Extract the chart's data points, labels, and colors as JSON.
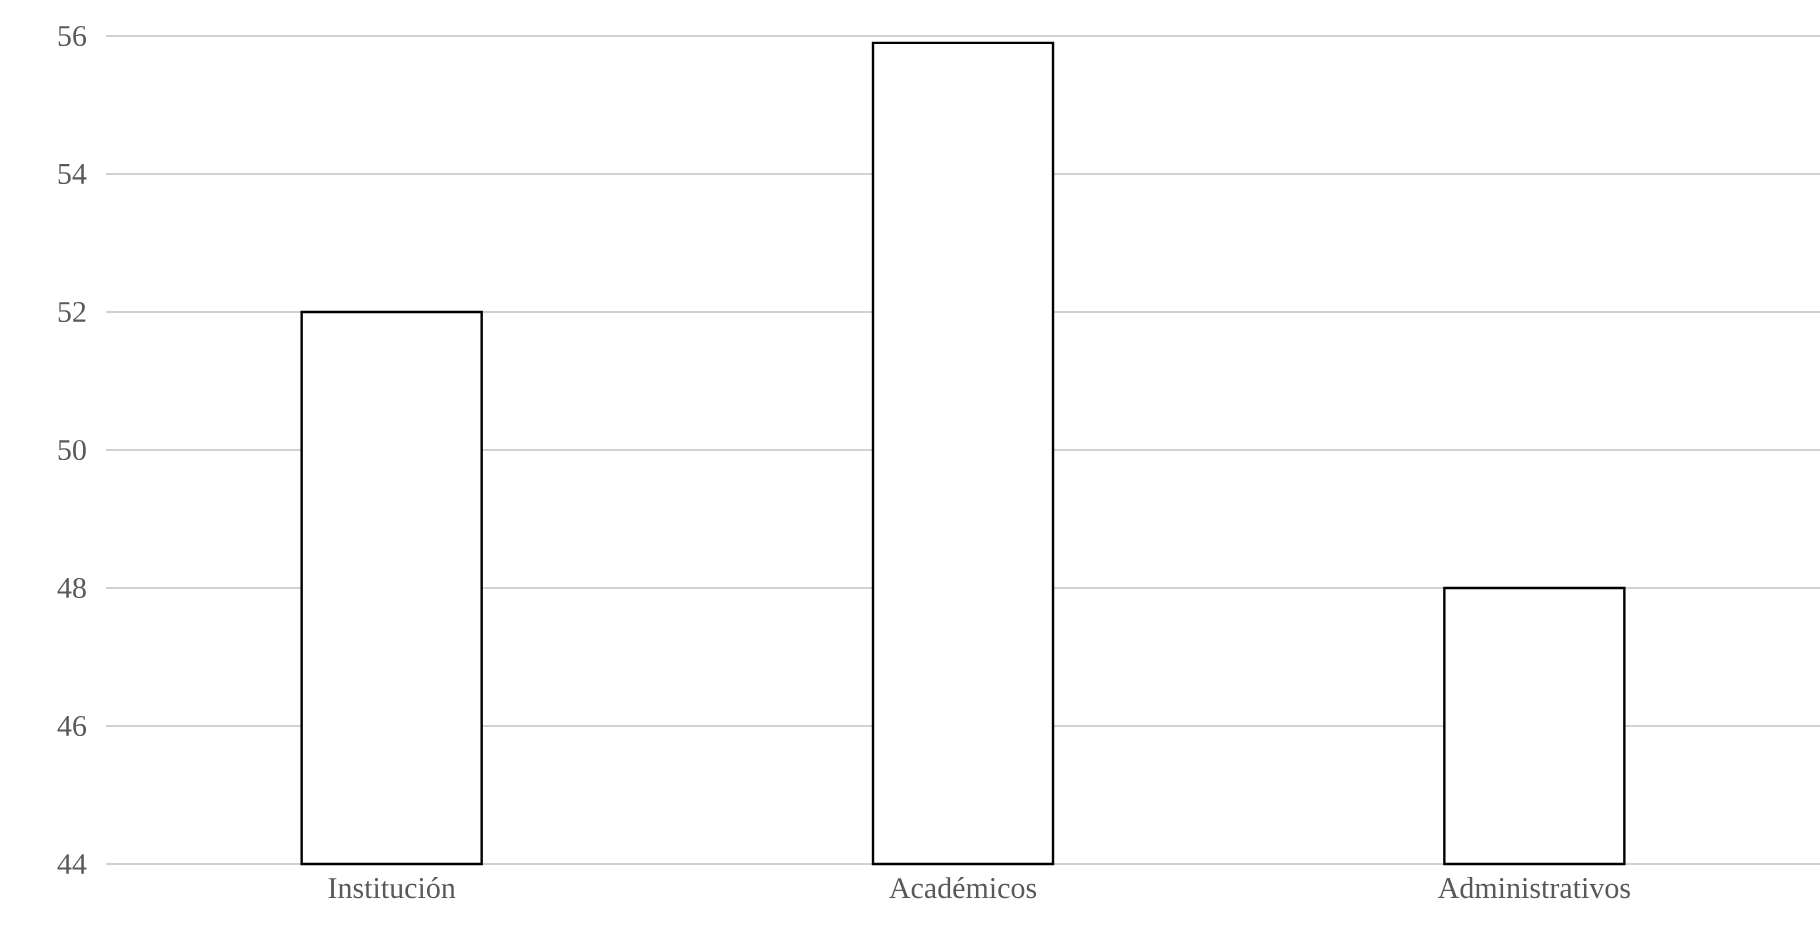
{
  "chart_data": {
    "type": "bar",
    "categories": [
      "Institución",
      "Académicos",
      "Administrativos"
    ],
    "values": [
      52,
      55.9,
      48
    ],
    "color": "#ffffff",
    "ylim": [
      44,
      56
    ],
    "yticks": [
      44,
      46,
      48,
      50,
      52,
      54,
      56
    ],
    "grid": "y"
  }
}
